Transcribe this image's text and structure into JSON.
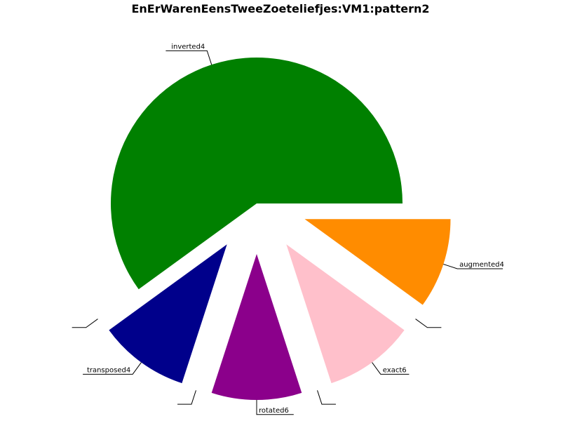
{
  "chart_data": {
    "type": "pie",
    "title": "EnErWarenEensTweeZoeteliefjes:VM1:pattern2",
    "slices": [
      {
        "label": "augmented4",
        "value": 1,
        "color": "#ff8c00",
        "exploded": true
      },
      {
        "label": "",
        "value": 0,
        "color": "#ffffff",
        "exploded": true
      },
      {
        "label": "exact6",
        "value": 1,
        "color": "#ffc0cb",
        "exploded": true
      },
      {
        "label": "",
        "value": 0,
        "color": "#ffffff",
        "exploded": true
      },
      {
        "label": "rotated6",
        "value": 1,
        "color": "#8b008b",
        "exploded": true
      },
      {
        "label": "",
        "value": 0,
        "color": "#ffffff",
        "exploded": true
      },
      {
        "label": "transposed4",
        "value": 1,
        "color": "#00008b",
        "exploded": true
      },
      {
        "label": "",
        "value": 0,
        "color": "#ffffff",
        "exploded": true
      },
      {
        "label": "inverted4",
        "value": 6,
        "color": "#008000",
        "exploded": false
      }
    ],
    "start_angle": "0°",
    "direction": "clockwise",
    "legend": "none"
  }
}
